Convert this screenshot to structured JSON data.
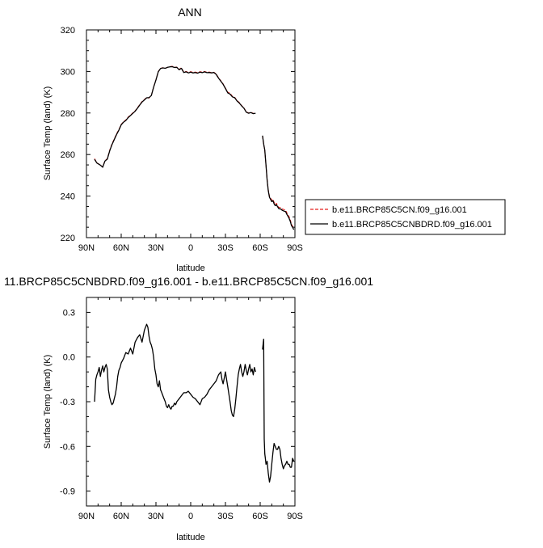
{
  "chart_data": [
    {
      "type": "line",
      "title": "ANN",
      "xlabel": "latitude",
      "ylabel": "Surface Temp (land) (K)",
      "xlim": [
        90,
        -90
      ],
      "ylim": [
        220,
        320
      ],
      "x_ticks": [
        90,
        60,
        30,
        0,
        -30,
        -60,
        -90
      ],
      "x_tick_labels": [
        "90N",
        "60N",
        "30N",
        "0",
        "30S",
        "60S",
        "90S"
      ],
      "y_ticks": [
        220,
        240,
        260,
        280,
        300,
        320
      ],
      "y_tick_labels": [
        "220",
        "240",
        "260",
        "280",
        "300",
        "320"
      ],
      "legend_position": "outside-right",
      "series": [
        {
          "name": "b.e11.BRCP85C5CN.f09_g16.001",
          "color": "#e8201e",
          "dash": "dashed",
          "segments": [
            {
              "x": [
                83,
                81,
                78,
                76,
                74,
                72,
                70,
                68,
                66,
                64,
                62,
                60,
                58,
                56,
                54,
                52,
                50,
                48,
                46,
                44,
                42,
                40,
                38,
                36,
                34,
                32,
                30,
                28,
                26,
                24,
                22,
                20,
                18,
                16,
                14,
                12,
                10,
                8,
                6,
                4,
                2,
                0,
                -2,
                -4,
                -6,
                -8,
                -10,
                -12,
                -14,
                -16,
                -18,
                -20,
                -22,
                -24,
                -26,
                -28,
                -30,
                -32,
                -34,
                -36,
                -38,
                -40,
                -42,
                -44,
                -46,
                -48,
                -50,
                -52,
                -54,
                -56
              ],
              "y": [
                258,
                256,
                255,
                254,
                257,
                258,
                262,
                265,
                267.5,
                270,
                272,
                274.5,
                275.8,
                276.6,
                278,
                279,
                280,
                281,
                282.5,
                284,
                285.5,
                286.5,
                287.5,
                287.2,
                288.5,
                292.5,
                296,
                300,
                301.5,
                301.8,
                301.5,
                302,
                302.3,
                302.5,
                302,
                302.1,
                301,
                301.7,
                299.7,
                300,
                299.5,
                299.9,
                299.5,
                299.7,
                299.4,
                299.9,
                299.6,
                300,
                299.6,
                299.7,
                299.4,
                299.6,
                298.8,
                297,
                295.5,
                294,
                292,
                290,
                289.5,
                288,
                287.5,
                286,
                285,
                283.5,
                282.5,
                280.5,
                280,
                280.3,
                279.8,
                280
              ]
            },
            {
              "x": [
                -62,
                -63,
                -64,
                -65,
                -66,
                -67,
                -68,
                -69,
                -70,
                -71,
                -72,
                -73,
                -74,
                -75,
                -76,
                -77,
                -78,
                -79,
                -80,
                -81,
                -82,
                -83,
                -84,
                -85,
                -86,
                -87,
                -88,
                -89
              ],
              "y": [
                269,
                265,
                262,
                255,
                248,
                243,
                240,
                239,
                238,
                238.5,
                237,
                236,
                236.5,
                235.5,
                234.6,
                234.5,
                234.3,
                233.8,
                233.6,
                233.4,
                233.2,
                231.9,
                231,
                230,
                228.5,
                226.5,
                225.5,
                224.5
              ]
            }
          ]
        },
        {
          "name": "b.e11.BRCP85C5CNBDRD.f09_g16.001",
          "color": "#000000",
          "dash": "solid",
          "segments": [
            {
              "x": [
                83,
                81,
                78,
                76,
                74,
                72,
                70,
                68,
                66,
                64,
                62,
                60,
                58,
                56,
                54,
                52,
                50,
                48,
                46,
                44,
                42,
                40,
                38,
                36,
                34,
                32,
                30,
                28,
                26,
                24,
                22,
                20,
                18,
                16,
                14,
                12,
                10,
                8,
                6,
                4,
                2,
                0,
                -2,
                -4,
                -6,
                -8,
                -10,
                -12,
                -14,
                -16,
                -18,
                -20,
                -22,
                -24,
                -26,
                -28,
                -30,
                -32,
                -34,
                -36,
                -38,
                -40,
                -42,
                -44,
                -46,
                -48,
                -50,
                -52,
                -54,
                -56
              ],
              "y": [
                257.7,
                255.9,
                254.9,
                253.9,
                256.9,
                257.8,
                261.7,
                264.7,
                267.2,
                269.7,
                271.7,
                274.3,
                275.6,
                276.4,
                277.8,
                278.8,
                279.8,
                280.8,
                282.3,
                283.8,
                285.3,
                286.3,
                287.3,
                287.4,
                288.4,
                292.4,
                295.9,
                299.9,
                301.4,
                301.7,
                301.5,
                302,
                302.2,
                302.3,
                301.9,
                302,
                300.8,
                301.5,
                299.5,
                299.8,
                299.3,
                299.7,
                299.3,
                299.5,
                299.2,
                299.7,
                299.4,
                299.8,
                299.4,
                299.5,
                299.3,
                299.5,
                298.6,
                296.8,
                295.3,
                293.8,
                291.8,
                289.7,
                289.1,
                287.8,
                287.3,
                285.8,
                284.8,
                283.4,
                282.3,
                280.4,
                279.9,
                280.2,
                279.7,
                279.9
              ]
            },
            {
              "x": [
                -62,
                -63,
                -64,
                -65,
                -66,
                -67,
                -68,
                -69,
                -70,
                -71,
                -72,
                -73,
                -74,
                -75,
                -76,
                -77,
                -78,
                -79,
                -80,
                -81,
                -82,
                -83,
                -84,
                -85,
                -86,
                -87,
                -88,
                -89
              ],
              "y": [
                269.1,
                265.1,
                262.1,
                254.8,
                247.6,
                242.6,
                239.4,
                238.4,
                237.3,
                237.8,
                236.3,
                235.4,
                235.8,
                234.9,
                234,
                233.8,
                233.7,
                233.2,
                232.9,
                232.7,
                232.5,
                231.2,
                230.3,
                229.3,
                227.8,
                225.8,
                225,
                223.8
              ]
            }
          ]
        }
      ]
    },
    {
      "type": "line",
      "title": "11.BRCP85C5CNBDRD.f09_g16.001 - b.e11.BRCP85C5CN.f09_g16.001",
      "xlabel": "latitude",
      "ylabel": "Surface Temp (land) (K)",
      "xlim": [
        90,
        -90
      ],
      "ylim": [
        -1.0,
        0.4
      ],
      "x_ticks": [
        90,
        60,
        30,
        0,
        -30,
        -60,
        -90
      ],
      "x_tick_labels": [
        "90N",
        "60N",
        "30N",
        "0",
        "30S",
        "60S",
        "90S"
      ],
      "y_ticks": [
        -0.9,
        -0.6,
        -0.3,
        0.0,
        0.3
      ],
      "y_tick_labels": [
        "-0.9",
        "-0.6",
        "-0.3",
        "0.0",
        "0.3"
      ],
      "series": [
        {
          "name": "",
          "color": "#000000",
          "dash": "solid",
          "segments": [
            {
              "x": [
                83,
                82,
                81,
                80,
                79,
                78,
                77,
                76,
                75,
                74,
                73,
                72,
                71,
                70,
                69,
                68,
                67,
                66,
                65,
                64,
                63,
                62,
                61,
                60,
                58,
                56,
                54,
                52,
                50,
                48,
                46,
                44,
                42,
                40,
                38,
                37,
                36,
                35,
                34,
                33,
                32,
                31,
                30,
                29,
                28,
                27,
                26,
                25,
                24,
                23,
                22,
                21,
                20,
                19,
                18,
                17,
                16,
                15,
                14,
                13,
                12,
                10,
                8,
                6,
                4,
                2,
                0,
                -2,
                -4,
                -6,
                -8,
                -10,
                -12,
                -14,
                -16,
                -18,
                -20,
                -22,
                -24,
                -26,
                -27,
                -28,
                -29,
                -30,
                -31,
                -32,
                -33,
                -34,
                -35,
                -36,
                -37,
                -38,
                -39,
                -40,
                -41,
                -42,
                -43,
                -44,
                -45,
                -46,
                -47,
                -48,
                -49,
                -50,
                -51,
                -52,
                -53,
                -54,
                -55,
                -56
              ],
              "y": [
                -0.3,
                -0.15,
                -0.12,
                -0.1,
                -0.07,
                -0.13,
                -0.09,
                -0.06,
                -0.1,
                -0.07,
                -0.05,
                -0.08,
                -0.22,
                -0.27,
                -0.3,
                -0.32,
                -0.31,
                -0.28,
                -0.25,
                -0.2,
                -0.13,
                -0.09,
                -0.07,
                -0.04,
                -0.01,
                0.03,
                0.02,
                0.06,
                0.02,
                0.1,
                0.13,
                0.15,
                0.1,
                0.18,
                0.22,
                0.2,
                0.14,
                0.1,
                0.08,
                0.05,
                0.0,
                -0.08,
                -0.12,
                -0.18,
                -0.2,
                -0.16,
                -0.22,
                -0.24,
                -0.26,
                -0.28,
                -0.3,
                -0.33,
                -0.34,
                -0.32,
                -0.34,
                -0.35,
                -0.33,
                -0.33,
                -0.31,
                -0.32,
                -0.3,
                -0.28,
                -0.26,
                -0.24,
                -0.24,
                -0.23,
                -0.25,
                -0.27,
                -0.28,
                -0.3,
                -0.32,
                -0.28,
                -0.27,
                -0.25,
                -0.22,
                -0.2,
                -0.18,
                -0.16,
                -0.12,
                -0.1,
                -0.15,
                -0.18,
                -0.14,
                -0.1,
                -0.15,
                -0.2,
                -0.25,
                -0.3,
                -0.36,
                -0.39,
                -0.4,
                -0.35,
                -0.28,
                -0.2,
                -0.12,
                -0.08,
                -0.05,
                -0.1,
                -0.13,
                -0.1,
                -0.05,
                -0.09,
                -0.12,
                -0.08,
                -0.05,
                -0.1,
                -0.08,
                -0.12,
                -0.07,
                -0.1
              ]
            },
            {
              "x": [
                -62,
                -63,
                -63.5,
                -64,
                -64.5,
                -65,
                -66,
                -67,
                -68,
                -69,
                -70,
                -71,
                -72,
                -73,
                -74,
                -75,
                -76,
                -77,
                -78,
                -79,
                -80,
                -81,
                -82,
                -83,
                -84,
                -85,
                -86,
                -87,
                -88,
                -89
              ],
              "y": [
                0.05,
                0.12,
                -0.55,
                -0.65,
                -0.68,
                -0.72,
                -0.7,
                -0.78,
                -0.84,
                -0.8,
                -0.72,
                -0.64,
                -0.58,
                -0.6,
                -0.62,
                -0.62,
                -0.6,
                -0.62,
                -0.68,
                -0.72,
                -0.75,
                -0.73,
                -0.72,
                -0.7,
                -0.72,
                -0.72,
                -0.74,
                -0.74,
                -0.68,
                -0.7
              ]
            }
          ]
        }
      ]
    }
  ]
}
